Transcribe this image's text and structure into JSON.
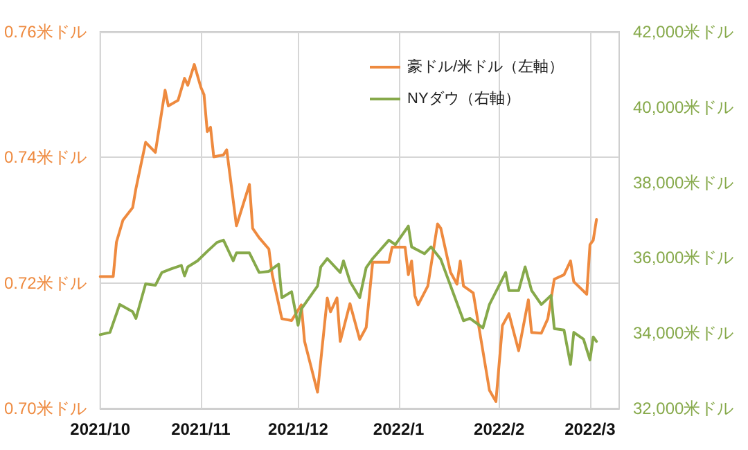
{
  "chart_data": {
    "type": "line",
    "xlim": [
      "2021-10-01",
      "2022-03-10"
    ],
    "xticks": [
      {
        "value": "2021-10-01",
        "label": "2021/10"
      },
      {
        "value": "2021-11-01",
        "label": "2021/11"
      },
      {
        "value": "2021-12-01",
        "label": "2021/12"
      },
      {
        "value": "2022-01-01",
        "label": "2022/1"
      },
      {
        "value": "2022-02-01",
        "label": "2022/2"
      },
      {
        "value": "2022-03-01",
        "label": "2022/3"
      }
    ],
    "ylim": [
      0.7,
      0.76
    ],
    "yticks": [
      {
        "value": 0.7,
        "label": "0.70米ドル"
      },
      {
        "value": 0.72,
        "label": "0.72米ドル"
      },
      {
        "value": 0.74,
        "label": "0.74米ドル"
      },
      {
        "value": 0.76,
        "label": "0.76米ドル"
      }
    ],
    "y2lim": [
      32000,
      42000
    ],
    "y2ticks": [
      {
        "value": 32000,
        "label": "32,000米ドル"
      },
      {
        "value": 34000,
        "label": "34,000米ドル"
      },
      {
        "value": 36000,
        "label": "36,000米ドル"
      },
      {
        "value": 38000,
        "label": "38,000米ドル"
      },
      {
        "value": 40000,
        "label": "40,000米ドル"
      },
      {
        "value": 42000,
        "label": "42,000米ドル"
      }
    ],
    "grid": true,
    "legend": "top right",
    "marker": "none",
    "line_style": "solid",
    "series": [
      {
        "name": "豪ドル/米ドル（左軸）",
        "color": "#ee8a3f",
        "x": [
          "2021-10-01",
          "2021-10-05",
          "2021-10-06",
          "2021-10-08",
          "2021-10-11",
          "2021-10-12",
          "2021-10-15",
          "2021-10-18",
          "2021-10-21",
          "2021-10-22",
          "2021-10-25",
          "2021-10-27",
          "2021-10-28",
          "2021-10-30",
          "2021-11-01",
          "2021-11-02",
          "2021-11-03",
          "2021-11-04",
          "2021-11-05",
          "2021-11-08",
          "2021-11-09",
          "2021-11-12",
          "2021-11-16",
          "2021-11-17",
          "2021-11-19",
          "2021-11-22",
          "2021-11-23",
          "2021-11-26",
          "2021-11-29",
          "2021-12-02",
          "2021-12-03",
          "2021-12-07",
          "2021-12-10",
          "2021-12-11",
          "2021-12-13",
          "2021-12-14",
          "2021-12-17",
          "2021-12-20",
          "2021-12-22",
          "2021-12-24",
          "2021-12-29",
          "2021-12-30",
          "2022-01-03",
          "2022-01-04",
          "2022-01-05",
          "2022-01-06",
          "2022-01-07",
          "2022-01-10",
          "2022-01-13",
          "2022-01-14",
          "2022-01-17",
          "2022-01-19",
          "2022-01-20",
          "2022-01-21",
          "2022-01-24",
          "2022-01-29",
          "2022-01-31",
          "2022-02-02",
          "2022-02-04",
          "2022-02-07",
          "2022-02-10",
          "2022-02-11",
          "2022-02-14",
          "2022-02-16",
          "2022-02-18",
          "2022-02-21",
          "2022-02-23",
          "2022-02-24",
          "2022-02-28",
          "2022-03-01",
          "2022-03-02",
          "2022-03-03"
        ],
        "values": [
          0.721,
          0.721,
          0.7265,
          0.73,
          0.732,
          0.735,
          0.7424,
          0.7408,
          0.7507,
          0.7482,
          0.7491,
          0.7526,
          0.7515,
          0.7548,
          0.7512,
          0.75,
          0.7441,
          0.7448,
          0.7401,
          0.7404,
          0.7412,
          0.7291,
          0.7357,
          0.7287,
          0.7272,
          0.7254,
          0.7214,
          0.7143,
          0.714,
          0.7165,
          0.7107,
          0.7026,
          0.7176,
          0.7154,
          0.7176,
          0.7107,
          0.7167,
          0.711,
          0.7129,
          0.7233,
          0.7233,
          0.7257,
          0.7257,
          0.7213,
          0.7235,
          0.718,
          0.7165,
          0.7195,
          0.7294,
          0.7287,
          0.7217,
          0.7198,
          0.7235,
          0.7195,
          0.7184,
          0.7029,
          0.7011,
          0.7132,
          0.7151,
          0.7092,
          0.7173,
          0.7121,
          0.712,
          0.7143,
          0.7206,
          0.7213,
          0.7235,
          0.7202,
          0.7182,
          0.7261,
          0.7268,
          0.7301
        ]
      },
      {
        "name": "NYダウ（右軸）",
        "color": "#86a94a",
        "axis": "y2",
        "x": [
          "2021-10-01",
          "2021-10-04",
          "2021-10-07",
          "2021-10-11",
          "2021-10-12",
          "2021-10-15",
          "2021-10-18",
          "2021-10-20",
          "2021-10-23",
          "2021-10-26",
          "2021-10-27",
          "2021-10-28",
          "2021-10-31",
          "2021-11-03",
          "2021-11-06",
          "2021-11-08",
          "2021-11-11",
          "2021-11-12",
          "2021-11-16",
          "2021-11-19",
          "2021-11-22",
          "2021-11-25",
          "2021-11-26",
          "2021-11-29",
          "2021-12-01",
          "2021-12-02",
          "2021-12-07",
          "2021-12-08",
          "2021-12-10",
          "2021-12-14",
          "2021-12-15",
          "2021-12-17",
          "2021-12-20",
          "2021-12-22",
          "2021-12-24",
          "2021-12-29",
          "2021-12-31",
          "2022-01-04",
          "2022-01-05",
          "2022-01-09",
          "2022-01-11",
          "2022-01-14",
          "2022-01-21",
          "2022-01-23",
          "2022-01-27",
          "2022-01-29",
          "2022-02-03",
          "2022-02-04",
          "2022-02-07",
          "2022-02-09",
          "2022-02-11",
          "2022-02-14",
          "2022-02-17",
          "2022-02-18",
          "2022-02-21",
          "2022-02-23",
          "2022-02-24",
          "2022-02-27",
          "2022-03-01",
          "2022-03-02",
          "2022-03-03"
        ],
        "values": [
          33960,
          34020,
          34760,
          34570,
          34390,
          35310,
          35270,
          35610,
          35710,
          35800,
          35520,
          35760,
          35920,
          36170,
          36410,
          36470,
          35920,
          36130,
          36130,
          35610,
          35640,
          35830,
          34940,
          35100,
          34210,
          34640,
          35250,
          35760,
          35980,
          35610,
          35920,
          35370,
          34940,
          35740,
          35980,
          36470,
          36350,
          36840,
          36290,
          36110,
          36290,
          35960,
          34330,
          34390,
          34140,
          34760,
          35610,
          35130,
          35130,
          35760,
          35130,
          34760,
          35000,
          34120,
          34080,
          33170,
          34020,
          33840,
          33290,
          33900,
          33780
        ]
      }
    ]
  }
}
